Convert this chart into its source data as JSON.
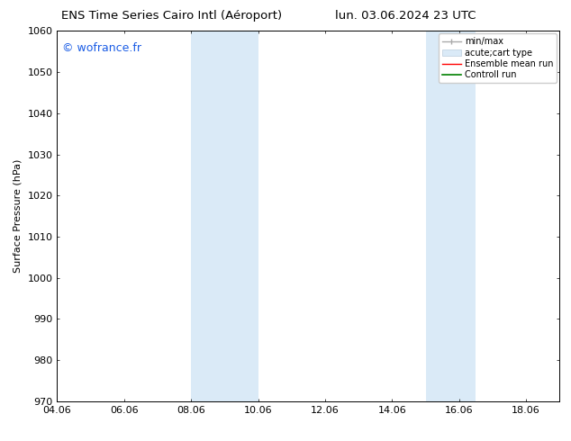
{
  "title_left": "ENS Time Series Cairo Intl (Aéroport)",
  "title_right": "lun. 03.06.2024 23 UTC",
  "ylabel": "Surface Pressure (hPa)",
  "xlabel": "",
  "xlim": [
    4.06,
    19.06
  ],
  "ylim": [
    970,
    1060
  ],
  "yticks": [
    970,
    980,
    990,
    1000,
    1010,
    1020,
    1030,
    1040,
    1050,
    1060
  ],
  "xtick_labels": [
    "04.06",
    "06.06",
    "08.06",
    "10.06",
    "12.06",
    "14.06",
    "16.06",
    "18.06"
  ],
  "xtick_positions": [
    4.06,
    6.06,
    8.06,
    10.06,
    12.06,
    14.06,
    16.06,
    18.06
  ],
  "shaded_bands": [
    {
      "x_start": 8.06,
      "x_end": 10.06
    },
    {
      "x_start": 15.06,
      "x_end": 16.56
    }
  ],
  "band_color": "#daeaf7",
  "background_color": "#ffffff",
  "border_color": "#000000",
  "watermark_text": "© wofrance.fr",
  "watermark_color": "#1a5ce5",
  "legend_entries": [
    {
      "label": "min/max",
      "color": "#aaaaaa",
      "linestyle": "-",
      "linewidth": 1.0
    },
    {
      "label": "acute;cart type",
      "color": "#daeaf7",
      "linestyle": "-",
      "linewidth": 5
    },
    {
      "label": "Ensemble mean run",
      "color": "#ff0000",
      "linestyle": "-",
      "linewidth": 1.0
    },
    {
      "label": "Controll run",
      "color": "#008000",
      "linestyle": "-",
      "linewidth": 1.2
    }
  ],
  "title_fontsize": 9.5,
  "ylabel_fontsize": 8,
  "tick_fontsize": 8,
  "watermark_fontsize": 9,
  "legend_fontsize": 7
}
